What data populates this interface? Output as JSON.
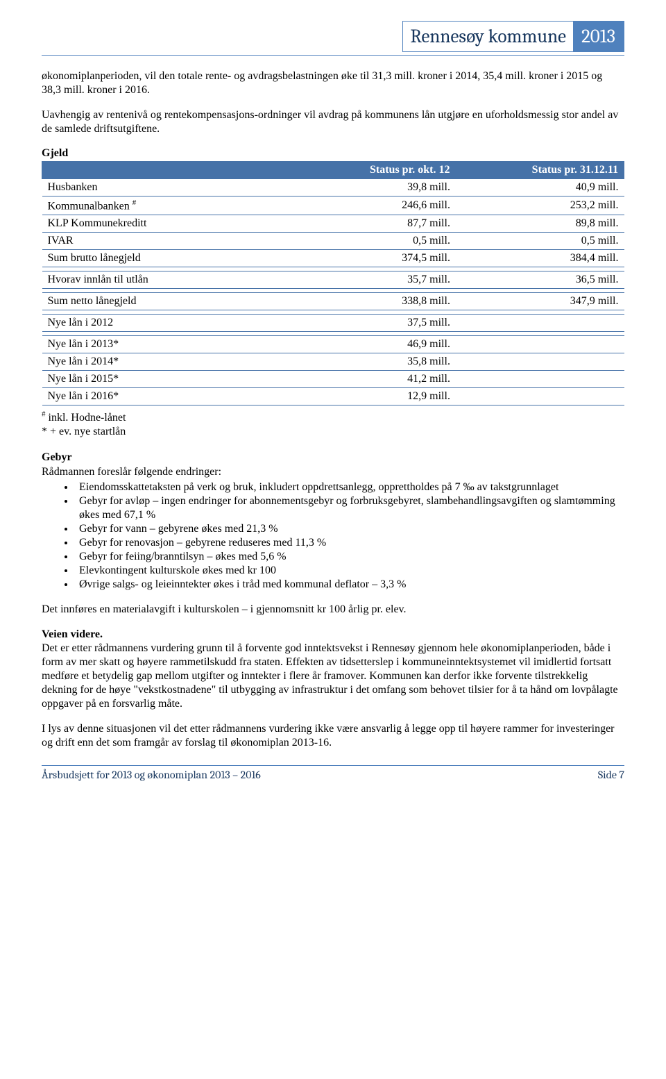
{
  "header": {
    "title": "Rennesøy kommune",
    "year": "2013"
  },
  "intro": {
    "p1": "økonomiplanperioden, vil den totale rente- og avdragsbelastningen øke til 31,3 mill. kroner i 2014, 35,4 mill. kroner i 2015 og 38,3 mill. kroner i 2016.",
    "p2": "Uavhengig av rentenivå og rentekompensasjons-ordninger vil avdrag på kommunens lån utgjøre en uforholdsmessig stor andel av de samlede driftsutgiftene."
  },
  "gjeld": {
    "heading": "Gjeld",
    "col1": "Status pr. okt. 12",
    "col2": "Status pr. 31.12.11",
    "rows": [
      {
        "label": "Husbanken",
        "v1": "39,8 mill.",
        "v2": "40,9 mill."
      },
      {
        "label_html": "Kommunalbanken <sup>#</sup>",
        "v1": "246,6 mill.",
        "v2": "253,2 mill."
      },
      {
        "label": "KLP Kommunekreditt",
        "v1": "87,7 mill.",
        "v2": "89,8 mill."
      },
      {
        "label": "IVAR",
        "v1": "0,5 mill.",
        "v2": "0,5 mill."
      },
      {
        "label": "Sum brutto lånegjeld",
        "v1": "374,5 mill.",
        "v2": "384,4 mill."
      }
    ],
    "rows2": [
      {
        "label": "Hvorav innlån til utlån",
        "v1": "35,7 mill.",
        "v2": "36,5 mill."
      }
    ],
    "rows3": [
      {
        "label": "Sum netto lånegjeld",
        "v1": "338,8 mill.",
        "v2": "347,9 mill."
      }
    ],
    "rows4": [
      {
        "label": "Nye lån i 2012",
        "v1": "37,5 mill.",
        "v2": ""
      }
    ],
    "rows5": [
      {
        "label": "Nye lån i 2013*",
        "v1": "46,9 mill.",
        "v2": ""
      },
      {
        "label": "Nye lån i 2014*",
        "v1": "35,8 mill.",
        "v2": ""
      },
      {
        "label": "Nye lån i 2015*",
        "v1": "41,2 mill.",
        "v2": ""
      },
      {
        "label": "Nye lån i 2016*",
        "v1": "12,9 mill.",
        "v2": ""
      }
    ],
    "foot1": "# inkl. Hodne-lånet",
    "foot2": "* + ev. nye startlån"
  },
  "gebyr": {
    "heading": "Gebyr",
    "intro": "Rådmannen foreslår følgende endringer:",
    "items": [
      "Eiendomsskattetaksten på verk og bruk, inkludert oppdrettsanlegg, opprettholdes på 7 ‰ av takstgrunnlaget",
      "Gebyr for avløp – ingen endringer for abonnementsgebyr og forbruksgebyret, slambehandlingsavgiften og slamtømming økes med 67,1 %",
      "Gebyr for vann – gebyrene økes med 21,3 %",
      "Gebyr for renovasjon – gebyrene reduseres med 11,3 %",
      "Gebyr for feiing/branntilsyn – økes med 5,6 %",
      "Elevkontingent kulturskole økes med kr 100",
      "Øvrige salgs- og leieinntekter økes i tråd med kommunal deflator – 3,3 %"
    ],
    "after": "Det innføres en materialavgift i kulturskolen – i gjennomsnitt kr 100 årlig pr. elev."
  },
  "veien": {
    "heading": "Veien videre.",
    "p1": "Det er etter rådmannens vurdering grunn til å forvente god inntektsvekst i Rennesøy gjennom hele økonomiplanperioden, både i form av mer skatt og høyere rammetilskudd fra staten. Effekten av tidsetterslep i kommuneinntektsystemet vil imidlertid fortsatt medføre et betydelig gap mellom utgifter og inntekter i flere år framover. Kommunen kan derfor ikke forvente tilstrekkelig dekning for de høye \"vekstkostnadene\" til utbygging av infrastruktur i det omfang som behovet tilsier for å ta hånd om lovpålagte oppgaver på en forsvarlig måte.",
    "p2": "I lys av denne situasjonen vil det etter rådmannens vurdering ikke være ansvarlig å legge opp til høyere rammer for investeringer og drift enn det som framgår av forslag til økonomiplan 2013-16."
  },
  "footer": {
    "left": "Årsbudsjett for 2013 og økonomiplan 2013 – 2016",
    "right": "Side 7"
  }
}
